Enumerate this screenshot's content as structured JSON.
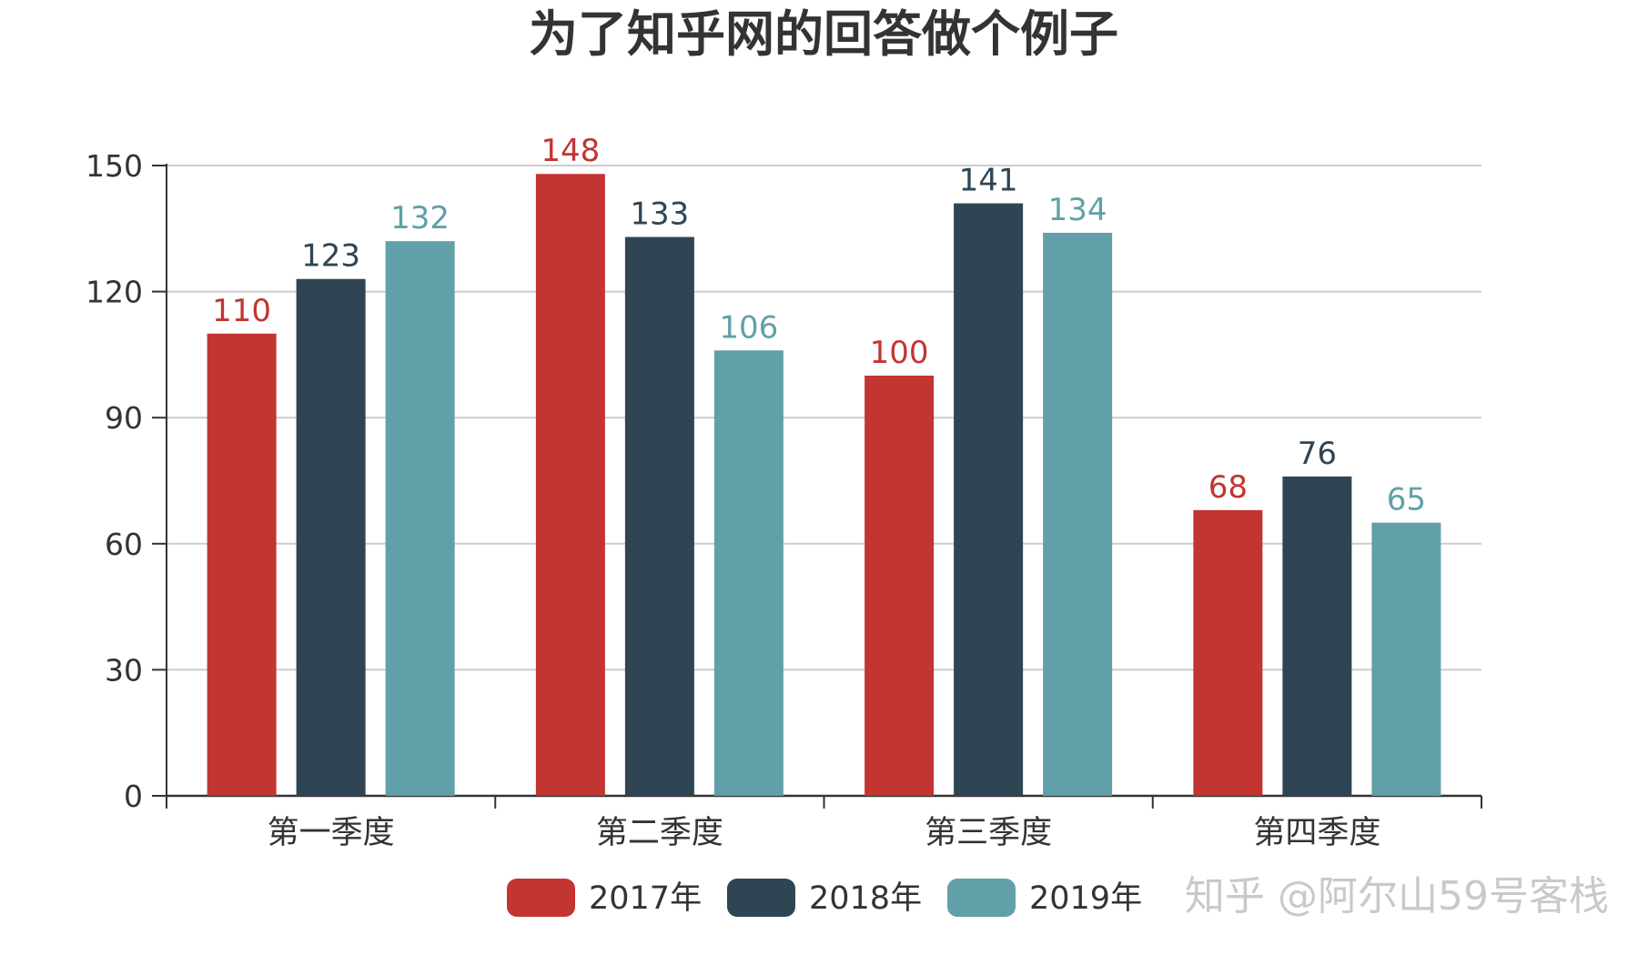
{
  "watermark": "知乎 @阿尔山59号客栈",
  "chart_data": {
    "type": "bar",
    "title": "为了知乎网的回答做个例子",
    "categories": [
      "第一季度",
      "第二季度",
      "第三季度",
      "第四季度"
    ],
    "series": [
      {
        "name": "2017年",
        "color": "#c23531",
        "values": [
          110,
          148,
          100,
          68
        ]
      },
      {
        "name": "2018年",
        "color": "#2f4554",
        "values": [
          123,
          133,
          141,
          76
        ]
      },
      {
        "name": "2019年",
        "color": "#61a0a8",
        "values": [
          132,
          106,
          134,
          65
        ]
      }
    ],
    "ylim": [
      0,
      150
    ],
    "yticks": [
      "0",
      "30",
      "60",
      "90",
      "120",
      "150"
    ],
    "grid": true,
    "legend": "bottom-center",
    "data_labels": true
  }
}
